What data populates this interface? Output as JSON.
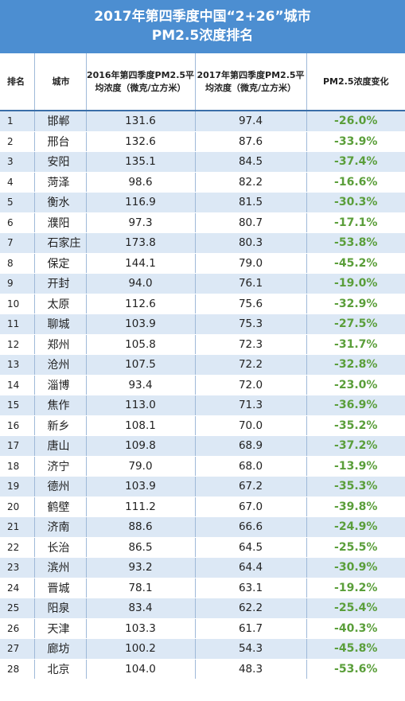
{
  "title": {
    "line1": "2017年第四季度中国“2+26”城市",
    "line2": "PM2.5浓度排名"
  },
  "headers": {
    "rank": "排名",
    "city": "城市",
    "y2016": "2016年第四季度PM2.5平均浓度（微克/立方米）",
    "y2017": "2017年第四季度PM2.5平均浓度（微克/立方米）",
    "change": "PM2.5浓度变化"
  },
  "colors": {
    "title_bg": "#4c8ed1",
    "row_odd": "#dce8f5",
    "change_text": "#5a9e3a"
  },
  "rows": [
    {
      "rank": "1",
      "city": "邯郸",
      "y2016": "131.6",
      "y2017": "97.4",
      "change": "-26.0%"
    },
    {
      "rank": "2",
      "city": "邢台",
      "y2016": "132.6",
      "y2017": "87.6",
      "change": "-33.9%"
    },
    {
      "rank": "3",
      "city": "安阳",
      "y2016": "135.1",
      "y2017": "84.5",
      "change": "-37.4%"
    },
    {
      "rank": "4",
      "city": "菏泽",
      "y2016": "98.6",
      "y2017": "82.2",
      "change": "-16.6%"
    },
    {
      "rank": "5",
      "city": "衡水",
      "y2016": "116.9",
      "y2017": "81.5",
      "change": "-30.3%"
    },
    {
      "rank": "6",
      "city": "濮阳",
      "y2016": "97.3",
      "y2017": "80.7",
      "change": "-17.1%"
    },
    {
      "rank": "7",
      "city": "石家庄",
      "y2016": "173.8",
      "y2017": "80.3",
      "change": "-53.8%"
    },
    {
      "rank": "8",
      "city": "保定",
      "y2016": "144.1",
      "y2017": "79.0",
      "change": "-45.2%"
    },
    {
      "rank": "9",
      "city": "开封",
      "y2016": "94.0",
      "y2017": "76.1",
      "change": "-19.0%"
    },
    {
      "rank": "10",
      "city": "太原",
      "y2016": "112.6",
      "y2017": "75.6",
      "change": "-32.9%"
    },
    {
      "rank": "11",
      "city": "聊城",
      "y2016": "103.9",
      "y2017": "75.3",
      "change": "-27.5%"
    },
    {
      "rank": "12",
      "city": "郑州",
      "y2016": "105.8",
      "y2017": "72.3",
      "change": "-31.7%"
    },
    {
      "rank": "13",
      "city": "沧州",
      "y2016": "107.5",
      "y2017": "72.2",
      "change": "-32.8%"
    },
    {
      "rank": "14",
      "city": "淄博",
      "y2016": "93.4",
      "y2017": "72.0",
      "change": "-23.0%"
    },
    {
      "rank": "15",
      "city": "焦作",
      "y2016": "113.0",
      "y2017": "71.3",
      "change": "-36.9%"
    },
    {
      "rank": "16",
      "city": "新乡",
      "y2016": "108.1",
      "y2017": "70.0",
      "change": "-35.2%"
    },
    {
      "rank": "17",
      "city": "唐山",
      "y2016": "109.8",
      "y2017": "68.9",
      "change": "-37.2%"
    },
    {
      "rank": "18",
      "city": "济宁",
      "y2016": "79.0",
      "y2017": "68.0",
      "change": "-13.9%"
    },
    {
      "rank": "19",
      "city": "德州",
      "y2016": "103.9",
      "y2017": "67.2",
      "change": "-35.3%"
    },
    {
      "rank": "20",
      "city": "鹤壁",
      "y2016": "111.2",
      "y2017": "67.0",
      "change": "-39.8%"
    },
    {
      "rank": "21",
      "city": "济南",
      "y2016": "88.6",
      "y2017": "66.6",
      "change": "-24.9%"
    },
    {
      "rank": "22",
      "city": "长治",
      "y2016": "86.5",
      "y2017": "64.5",
      "change": "-25.5%"
    },
    {
      "rank": "23",
      "city": "滨州",
      "y2016": "93.2",
      "y2017": "64.4",
      "change": "-30.9%"
    },
    {
      "rank": "24",
      "city": "晋城",
      "y2016": "78.1",
      "y2017": "63.1",
      "change": "-19.2%"
    },
    {
      "rank": "25",
      "city": "阳泉",
      "y2016": "83.4",
      "y2017": "62.2",
      "change": "-25.4%"
    },
    {
      "rank": "26",
      "city": "天津",
      "y2016": "103.3",
      "y2017": "61.7",
      "change": "-40.3%"
    },
    {
      "rank": "27",
      "city": "廊坊",
      "y2016": "100.2",
      "y2017": "54.3",
      "change": "-45.8%"
    },
    {
      "rank": "28",
      "city": "北京",
      "y2016": "104.0",
      "y2017": "48.3",
      "change": "-53.6%"
    }
  ]
}
